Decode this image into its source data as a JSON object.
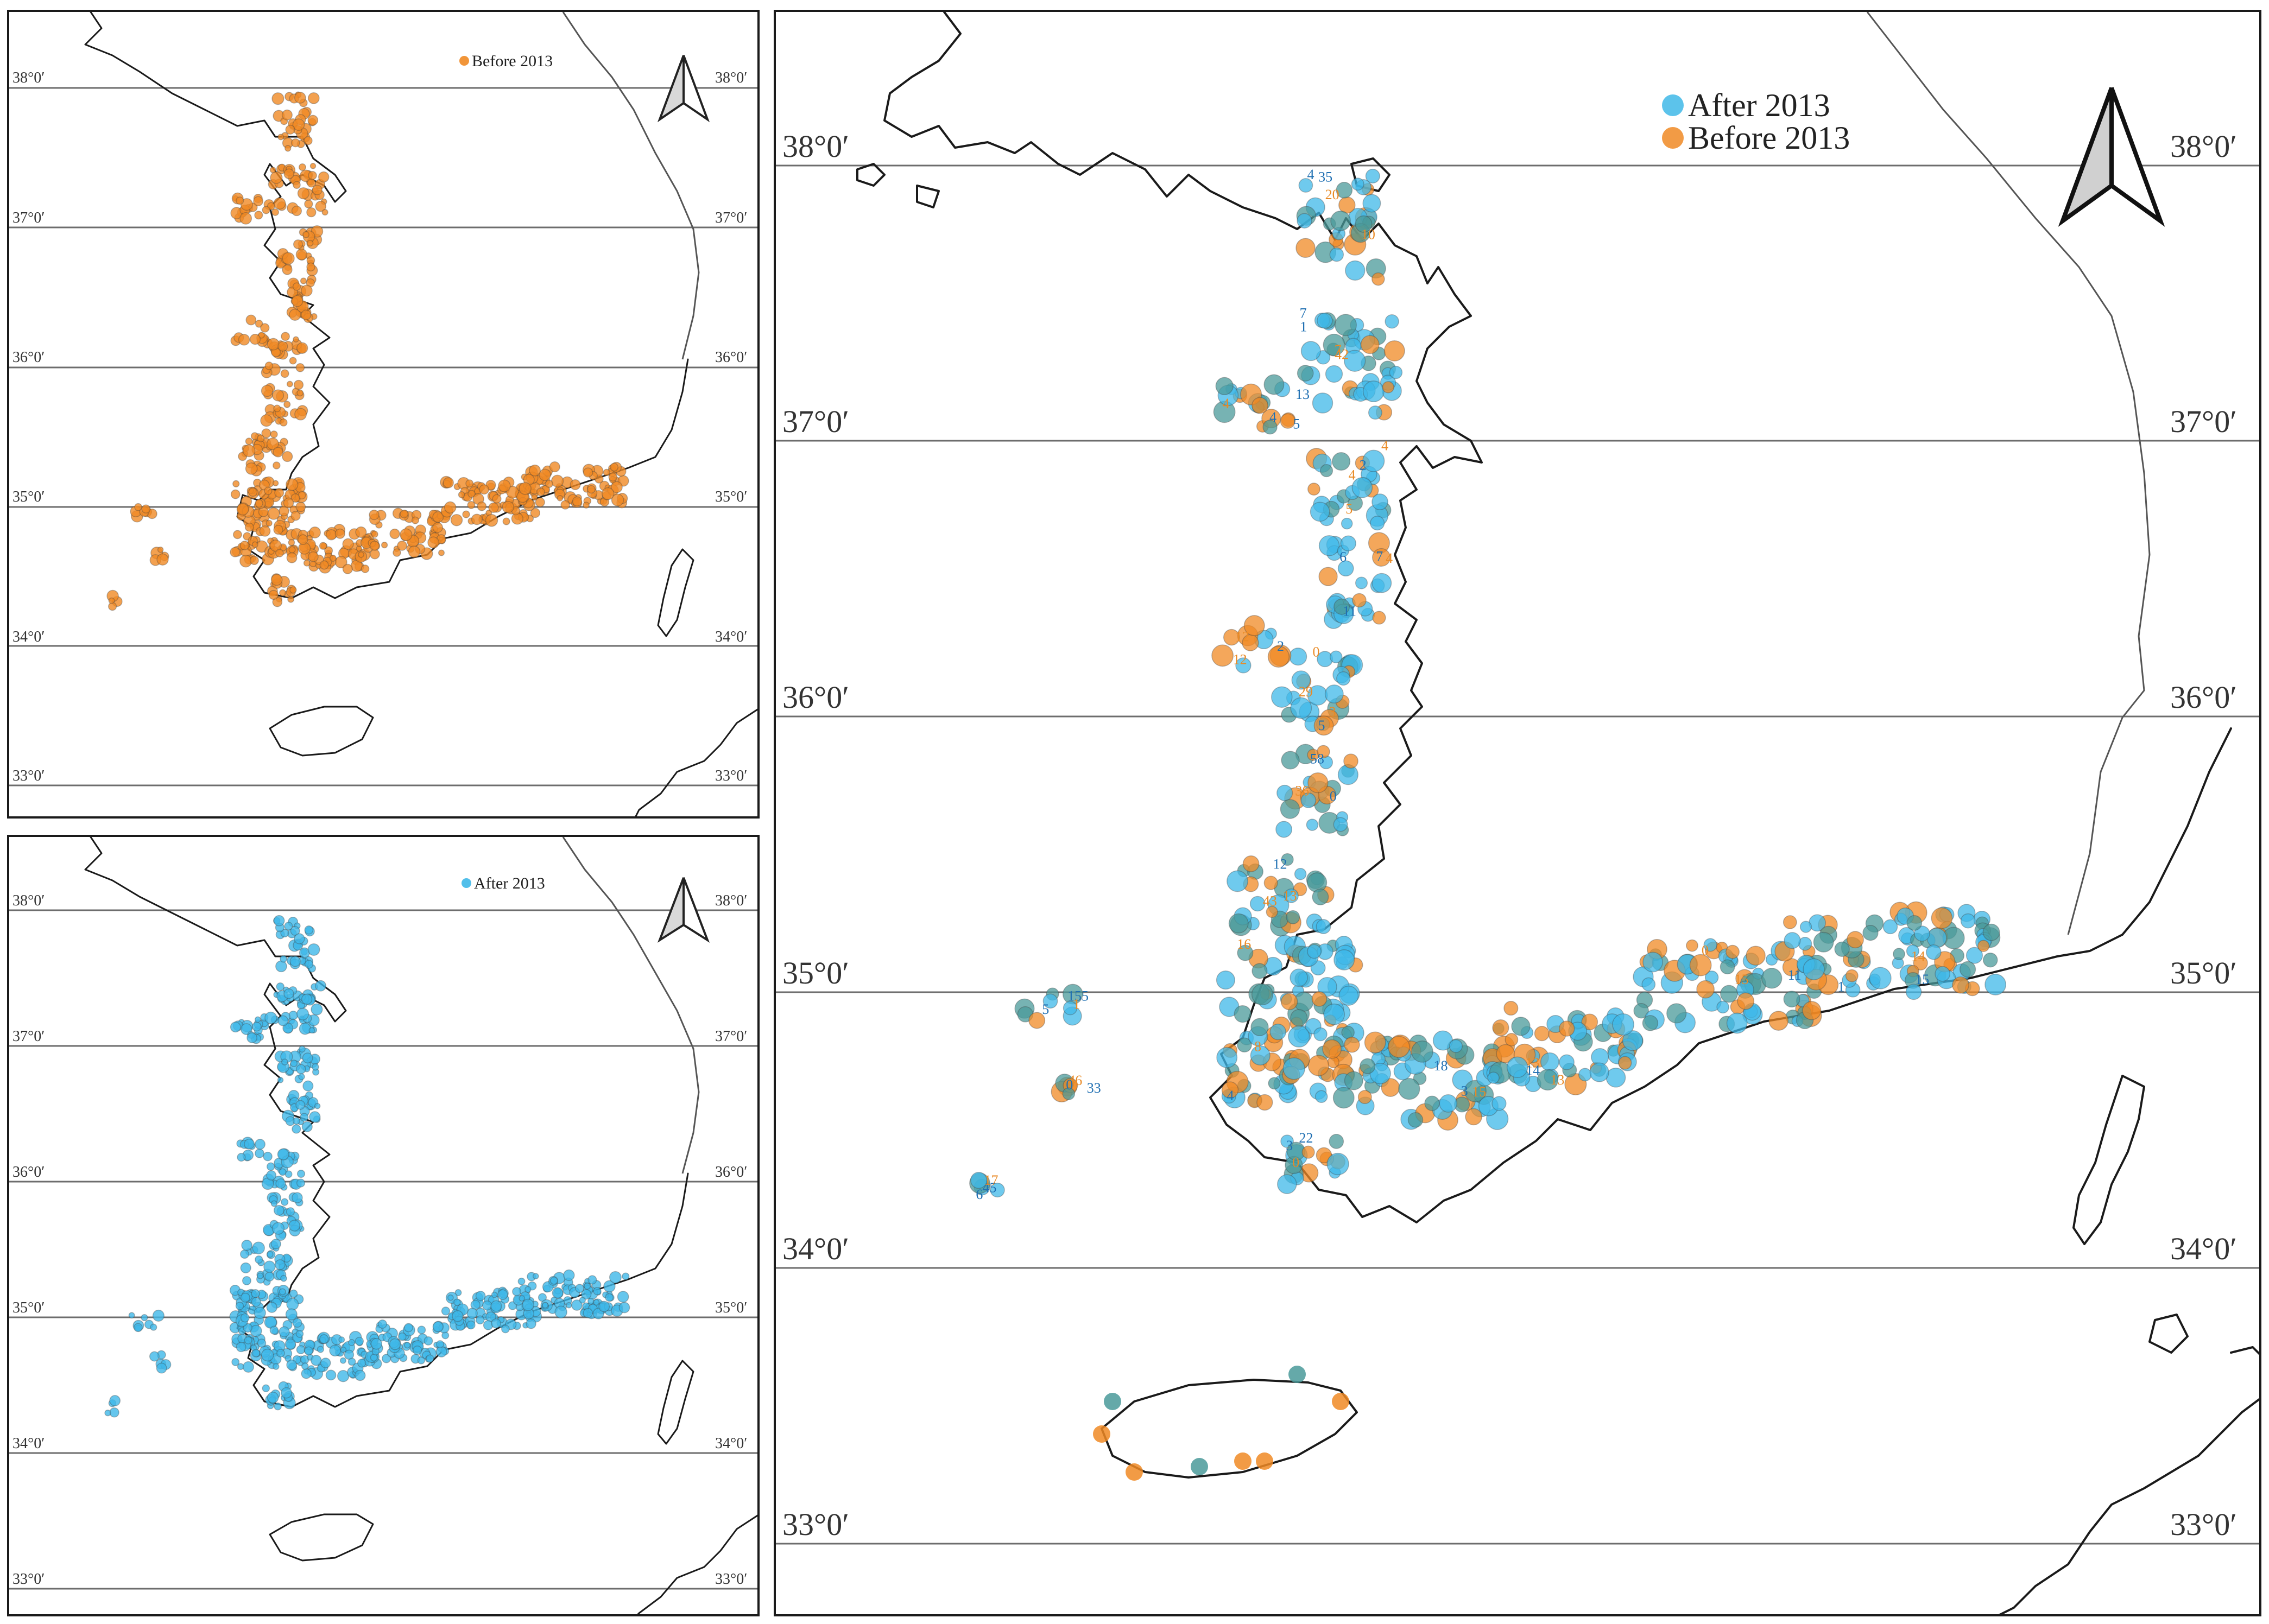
{
  "colors": {
    "before": "#f08a24",
    "after": "#3fb8e8",
    "overlap": "#4a9a9a",
    "label_before": "#e98a25",
    "label_after": "#1f6fb2"
  },
  "icons": {
    "north_arrow": "north-arrow-icon"
  },
  "panels": {
    "before": {
      "legend_label": "Before 2013",
      "lat_left": [
        "38°0′",
        "37°0′",
        "36°0′",
        "35°0′",
        "34°0′",
        "33°0′"
      ],
      "lat_right": [
        "38°0′",
        "37°0′",
        "36°0′",
        "35°0′",
        "34°0′",
        "33°0′"
      ]
    },
    "after": {
      "legend_label": "After 2013",
      "lat_left": [
        "38°0′",
        "37°0′",
        "36°0′",
        "35°0′",
        "34°0′",
        "33°0′"
      ],
      "lat_right": [
        "38°0′",
        "37°0′",
        "36°0′",
        "35°0′",
        "34°0′",
        "33°0′"
      ]
    },
    "main": {
      "legend_after": "After 2013",
      "legend_before": "Before 2013",
      "lat_left": [
        "38°0′",
        "37°0′",
        "36°0′",
        "35°0′",
        "34°0′",
        "33°0′"
      ],
      "lat_right": [
        "38°0′",
        "37°0′",
        "36°0′",
        "35°0′",
        "34°0′",
        "33°0′"
      ],
      "point_labels": [
        {
          "t": "4",
          "c": "b"
        },
        {
          "t": "7",
          "c": "b"
        },
        {
          "t": "4",
          "c": "o"
        },
        {
          "t": "4",
          "c": "o"
        },
        {
          "t": "4",
          "c": "o"
        },
        {
          "t": "3",
          "c": "o"
        },
        {
          "t": "58",
          "c": "b"
        },
        {
          "t": "43",
          "c": "o"
        },
        {
          "t": "4",
          "c": "b"
        },
        {
          "t": "3",
          "c": "b"
        },
        {
          "t": "13",
          "c": "o"
        },
        {
          "t": "15",
          "c": "o"
        },
        {
          "t": "1",
          "c": "b"
        },
        {
          "t": "0",
          "c": "o"
        },
        {
          "t": "5",
          "c": "b"
        },
        {
          "t": "46",
          "c": "o"
        },
        {
          "t": "45",
          "c": "b"
        },
        {
          "t": "12",
          "c": "o"
        },
        {
          "t": "20",
          "c": "o"
        },
        {
          "t": "7",
          "c": "o"
        },
        {
          "t": "13",
          "c": "b"
        },
        {
          "t": "5",
          "c": "o"
        },
        {
          "t": "11",
          "c": "b"
        },
        {
          "t": "29",
          "c": "o"
        },
        {
          "t": "36",
          "c": "o"
        },
        {
          "t": "13",
          "c": "o"
        },
        {
          "t": "8",
          "c": "o"
        },
        {
          "t": "15",
          "c": "o"
        },
        {
          "t": "13",
          "c": "o"
        },
        {
          "t": "0",
          "c": "o"
        },
        {
          "t": "14",
          "c": "o"
        },
        {
          "t": "22",
          "c": "b"
        },
        {
          "t": "155",
          "c": "b"
        },
        {
          "t": "33",
          "c": "b"
        },
        {
          "t": "17",
          "c": "o"
        },
        {
          "t": "12",
          "c": "o"
        },
        {
          "t": "35",
          "c": "b"
        },
        {
          "t": "42",
          "c": "o"
        },
        {
          "t": "4",
          "c": "b"
        },
        {
          "t": "2",
          "c": "b"
        },
        {
          "t": "6",
          "c": "b"
        },
        {
          "t": "5",
          "c": "b"
        },
        {
          "t": "0",
          "c": "b"
        },
        {
          "t": "12",
          "c": "b"
        },
        {
          "t": "16",
          "c": "o"
        },
        {
          "t": "18",
          "c": "b"
        },
        {
          "t": "14",
          "c": "b"
        },
        {
          "t": "11",
          "c": "b"
        },
        {
          "t": "15",
          "c": "b"
        },
        {
          "t": "3",
          "c": "b"
        },
        {
          "t": "1",
          "c": "o"
        },
        {
          "t": "0",
          "c": "b"
        },
        {
          "t": "6",
          "c": "b"
        },
        {
          "t": "2",
          "c": "b"
        },
        {
          "t": "10",
          "c": "o"
        },
        {
          "t": "1",
          "c": "b"
        },
        {
          "t": "5",
          "c": "b"
        },
        {
          "t": "4",
          "c": "o"
        },
        {
          "t": "7",
          "c": "b"
        },
        {
          "t": "0",
          "c": "o"
        }
      ]
    }
  }
}
